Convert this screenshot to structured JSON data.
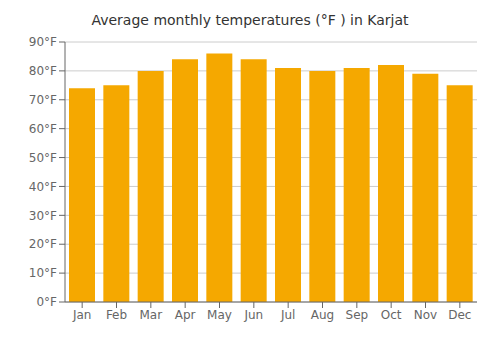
{
  "chart_data": {
    "type": "bar",
    "title": "Average monthly temperatures (°F ) in Karjat",
    "categories": [
      "Jan",
      "Feb",
      "Mar",
      "Apr",
      "May",
      "Jun",
      "Jul",
      "Aug",
      "Sep",
      "Oct",
      "Nov",
      "Dec"
    ],
    "values": [
      74,
      75,
      80,
      84,
      86,
      84,
      81,
      80,
      81,
      82,
      79,
      75
    ],
    "color": "#F5A800",
    "ylim": [
      0,
      90
    ],
    "yticks": [
      {
        "value": 0,
        "label": "0°F"
      },
      {
        "value": 10,
        "label": "10°F"
      },
      {
        "value": 20,
        "label": "20°F"
      },
      {
        "value": 30,
        "label": "30°F"
      },
      {
        "value": 40,
        "label": "40°F"
      },
      {
        "value": 50,
        "label": "50°F"
      },
      {
        "value": 60,
        "label": "60°F"
      },
      {
        "value": 70,
        "label": "70°F"
      },
      {
        "value": 80,
        "label": "80°F"
      },
      {
        "value": 90,
        "label": "90°F"
      }
    ],
    "grid": true
  }
}
